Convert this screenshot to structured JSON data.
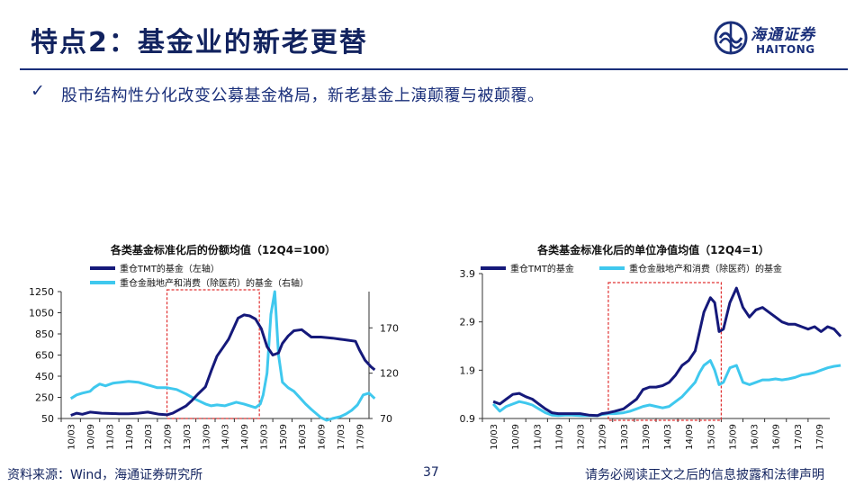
{
  "header": {
    "title": "特点2：基金业的新老更替",
    "logo_cn": "海通证券",
    "logo_en": "HAITONG"
  },
  "bullet": {
    "mark": "✓",
    "text": "股市结构性分化改变公募基金格局，新老基金上演颠覆与被颠覆。"
  },
  "colors": {
    "dark": "#15197a",
    "light": "#3fc8ee",
    "box": "#e03030",
    "navy": "#12235f"
  },
  "chart_data": [
    {
      "type": "line",
      "title": "各类基金标准化后的份额均值（12Q4=100）",
      "categories": [
        "10/03",
        "10/09",
        "11/03",
        "11/09",
        "12/03",
        "12/09",
        "13/03",
        "13/09",
        "14/03",
        "14/09",
        "15/03",
        "15/09",
        "16/03",
        "16/09",
        "17/03",
        "17/09"
      ],
      "series": [
        {
          "name": "重仓TMT的基金（左轴）",
          "axis": "left",
          "x": [
            0,
            0.3,
            0.6,
            1,
            1.3,
            1.6,
            2,
            2.5,
            3,
            3.5,
            4,
            4.3,
            4.6,
            5,
            5.3,
            5.6,
            6,
            6.3,
            6.6,
            7,
            7.3,
            7.6,
            7.9,
            8.2,
            8.5,
            8.7,
            9,
            9.3,
            9.6,
            9.9,
            10.2,
            10.5,
            10.8,
            11,
            11.3,
            11.6,
            12,
            12.5,
            13,
            13.3,
            13.6,
            14,
            14.4,
            14.8,
            15,
            15.3,
            15.6,
            15.8
          ],
          "values": [
            80,
            100,
            90,
            110,
            105,
            100,
            98,
            95,
            95,
            100,
            110,
            100,
            90,
            85,
            100,
            130,
            170,
            220,
            280,
            350,
            500,
            640,
            720,
            800,
            920,
            1000,
            1030,
            1020,
            990,
            900,
            730,
            650,
            670,
            760,
            830,
            880,
            890,
            820,
            820,
            815,
            810,
            800,
            790,
            780,
            700,
            600,
            540,
            510
          ]
        },
        {
          "name": "重仓金融地产和消费（除医药）的基金（右轴）",
          "axis": "right",
          "x": [
            0,
            0.3,
            0.6,
            1,
            1.2,
            1.5,
            1.8,
            2.2,
            2.6,
            3,
            3.5,
            4,
            4.5,
            5,
            5.5,
            6,
            6.5,
            7,
            7.3,
            7.6,
            8,
            8.3,
            8.6,
            9,
            9.3,
            9.6,
            9.85,
            10,
            10.2,
            10.4,
            10.6,
            10.8,
            11,
            11.3,
            11.6,
            11.9,
            12.2,
            12.5,
            13,
            13.3,
            13.6,
            14,
            14.3,
            14.6,
            14.9,
            15.2,
            15.5,
            15.8
          ],
          "values": [
            92,
            96,
            98,
            100,
            104,
            108,
            106,
            109,
            110,
            111,
            110,
            107,
            104,
            104,
            102,
            97,
            91,
            86,
            84,
            85,
            84,
            86,
            88,
            86,
            84,
            82,
            86,
            96,
            120,
            185,
            210,
            140,
            110,
            104,
            100,
            93,
            86,
            80,
            71,
            68,
            70,
            72,
            75,
            79,
            85,
            96,
            98,
            92
          ]
        }
      ],
      "left_axis": {
        "min": 50,
        "max": 1250,
        "ticks": [
          50,
          250,
          450,
          650,
          850,
          1050,
          1250
        ]
      },
      "right_axis": {
        "min": 70,
        "max": 210,
        "ticks": [
          70,
          120,
          170
        ]
      },
      "highlight_range": [
        5,
        9.8
      ]
    },
    {
      "type": "line",
      "title": "各类基金标准化后的单位净值均值（12Q4=1）",
      "categories": [
        "10/03",
        "10/09",
        "11/03",
        "11/09",
        "12/03",
        "12/09",
        "13/03",
        "13/09",
        "14/03",
        "14/09",
        "15/03",
        "15/09",
        "16/03",
        "16/09",
        "17/03",
        "17/09"
      ],
      "series": [
        {
          "name": "重仓TMT的基金",
          "x": [
            0,
            0.3,
            0.6,
            0.9,
            1.2,
            1.5,
            1.8,
            2.1,
            2.4,
            2.7,
            3,
            3.3,
            3.6,
            4,
            4.4,
            4.8,
            5,
            5.3,
            5.6,
            6,
            6.3,
            6.6,
            6.9,
            7.2,
            7.5,
            7.8,
            8.1,
            8.4,
            8.7,
            9,
            9.3,
            9.5,
            9.7,
            10,
            10.2,
            10.4,
            10.6,
            10.9,
            11.2,
            11.5,
            11.8,
            12.1,
            12.4,
            12.7,
            13,
            13.3,
            13.6,
            13.9,
            14.2,
            14.5,
            14.8,
            15.1,
            15.4,
            15.7,
            16
          ],
          "values": [
            1.25,
            1.2,
            1.3,
            1.4,
            1.42,
            1.35,
            1.3,
            1.2,
            1.1,
            1.02,
            1.0,
            1.0,
            1.0,
            1.0,
            0.97,
            0.96,
            1.0,
            1.02,
            1.05,
            1.1,
            1.2,
            1.3,
            1.5,
            1.55,
            1.55,
            1.58,
            1.65,
            1.8,
            2.0,
            2.1,
            2.3,
            2.7,
            3.1,
            3.4,
            3.3,
            2.7,
            2.75,
            3.3,
            3.6,
            3.2,
            3.0,
            3.15,
            3.2,
            3.1,
            3.0,
            2.9,
            2.85,
            2.85,
            2.8,
            2.75,
            2.8,
            2.7,
            2.8,
            2.75,
            2.6
          ]
        },
        {
          "name": "重仓金融地产和消费（除医药）的基金",
          "x": [
            0,
            0.3,
            0.6,
            0.9,
            1.2,
            1.5,
            1.8,
            2.1,
            2.4,
            2.7,
            3,
            3.3,
            3.6,
            4,
            4.4,
            4.8,
            5,
            5.3,
            5.6,
            6,
            6.3,
            6.6,
            6.9,
            7.2,
            7.5,
            7.8,
            8.1,
            8.4,
            8.7,
            9,
            9.3,
            9.5,
            9.7,
            10,
            10.2,
            10.4,
            10.6,
            10.9,
            11.2,
            11.5,
            11.8,
            12.1,
            12.4,
            12.7,
            13,
            13.3,
            13.6,
            13.9,
            14.2,
            14.5,
            14.8,
            15.1,
            15.4,
            15.7,
            16
          ],
          "values": [
            1.2,
            1.05,
            1.15,
            1.2,
            1.25,
            1.22,
            1.18,
            1.1,
            1.02,
            0.97,
            0.96,
            0.97,
            0.97,
            0.96,
            0.96,
            0.96,
            0.98,
            1.0,
            1.0,
            1.02,
            1.05,
            1.1,
            1.15,
            1.18,
            1.15,
            1.12,
            1.15,
            1.25,
            1.35,
            1.5,
            1.65,
            1.85,
            2.0,
            2.1,
            1.9,
            1.6,
            1.65,
            1.95,
            2.0,
            1.65,
            1.6,
            1.65,
            1.7,
            1.7,
            1.72,
            1.7,
            1.72,
            1.75,
            1.8,
            1.82,
            1.85,
            1.9,
            1.95,
            1.98,
            2.0
          ]
        }
      ],
      "y_axis": {
        "min": 0.9,
        "max": 3.9,
        "ticks": [
          0.9,
          1.9,
          2.9,
          3.9
        ]
      },
      "highlight_range": [
        5.3,
        10.5
      ]
    }
  ],
  "footer": {
    "source": "资料来源：Wind，海通证券研究所",
    "page": "37",
    "disclaimer": "请务必阅读正文之后的信息披露和法律声明"
  }
}
